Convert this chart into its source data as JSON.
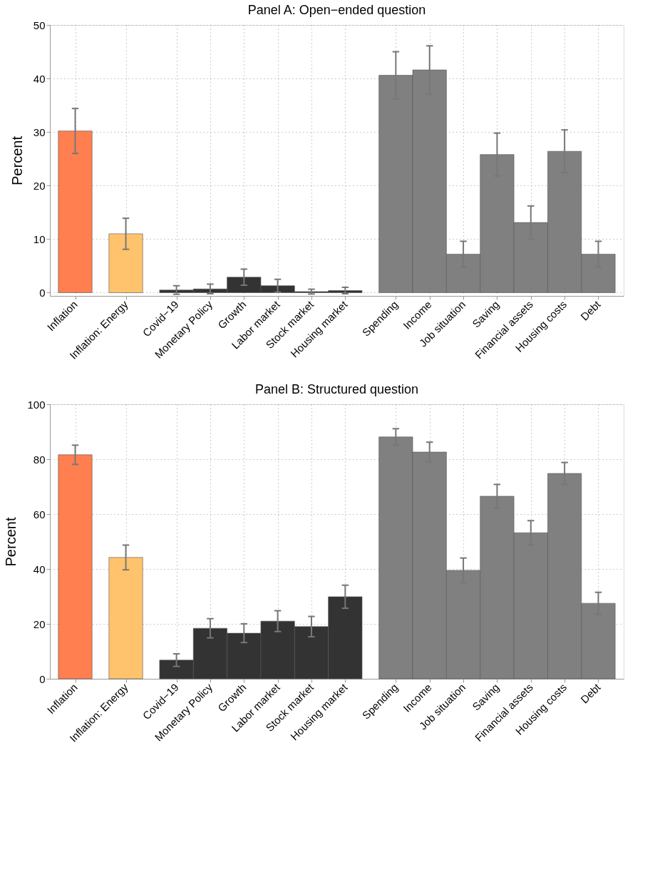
{
  "chart_data": [
    {
      "type": "bar",
      "title": "Panel A: Open−ended question",
      "ylabel": "Percent",
      "categories": [
        "Inflation",
        "Inflation: Energy",
        "Covid−19",
        "Monetary Policy",
        "Growth",
        "Labor market",
        "Stock market",
        "Housing market",
        "Spending",
        "Income",
        "Job situation",
        "Saving",
        "Financial assets",
        "Housing costs",
        "Debt"
      ],
      "values": [
        30.2,
        11.0,
        0.5,
        0.7,
        2.9,
        1.3,
        0.2,
        0.4,
        40.6,
        41.6,
        7.2,
        25.8,
        13.1,
        26.4,
        7.2
      ],
      "errors": [
        4.2,
        2.9,
        0.8,
        0.9,
        1.5,
        1.2,
        0.45,
        0.6,
        4.4,
        4.5,
        2.4,
        4.0,
        3.1,
        4.0,
        2.4
      ],
      "colors": [
        "#ff7f50",
        "#ffc36e",
        "#333333",
        "#333333",
        "#333333",
        "#333333",
        "#333333",
        "#333333",
        "#808080",
        "#808080",
        "#808080",
        "#808080",
        "#808080",
        "#808080",
        "#808080"
      ],
      "ylim": [
        -0.6,
        50
      ],
      "yticks": [
        0,
        10,
        20,
        30,
        40,
        50
      ],
      "grid": true,
      "legend": false
    },
    {
      "type": "bar",
      "title": "Panel B: Structured question",
      "ylabel": "Percent",
      "categories": [
        "Inflation",
        "Inflation: Energy",
        "Covid−19",
        "Monetary Policy",
        "Growth",
        "Labor market",
        "Stock market",
        "Housing market",
        "Spending",
        "Income",
        "Job situation",
        "Saving",
        "Financial assets",
        "Housing costs",
        "Debt"
      ],
      "values": [
        81.6,
        44.2,
        6.8,
        18.4,
        16.6,
        21.0,
        19.0,
        29.9,
        88.1,
        82.6,
        39.5,
        66.5,
        53.2,
        74.8,
        27.5
      ],
      "errors": [
        3.5,
        4.5,
        2.3,
        3.5,
        3.4,
        3.8,
        3.7,
        4.2,
        3.0,
        3.6,
        4.5,
        4.3,
        4.4,
        4.0,
        4.0
      ],
      "colors": [
        "#ff7f50",
        "#ffc36e",
        "#333333",
        "#333333",
        "#333333",
        "#333333",
        "#333333",
        "#333333",
        "#808080",
        "#808080",
        "#808080",
        "#808080",
        "#808080",
        "#808080",
        "#808080"
      ],
      "ylim": [
        0,
        100
      ],
      "yticks": [
        0,
        20,
        40,
        60,
        80,
        100
      ],
      "grid": true,
      "legend": false
    }
  ]
}
